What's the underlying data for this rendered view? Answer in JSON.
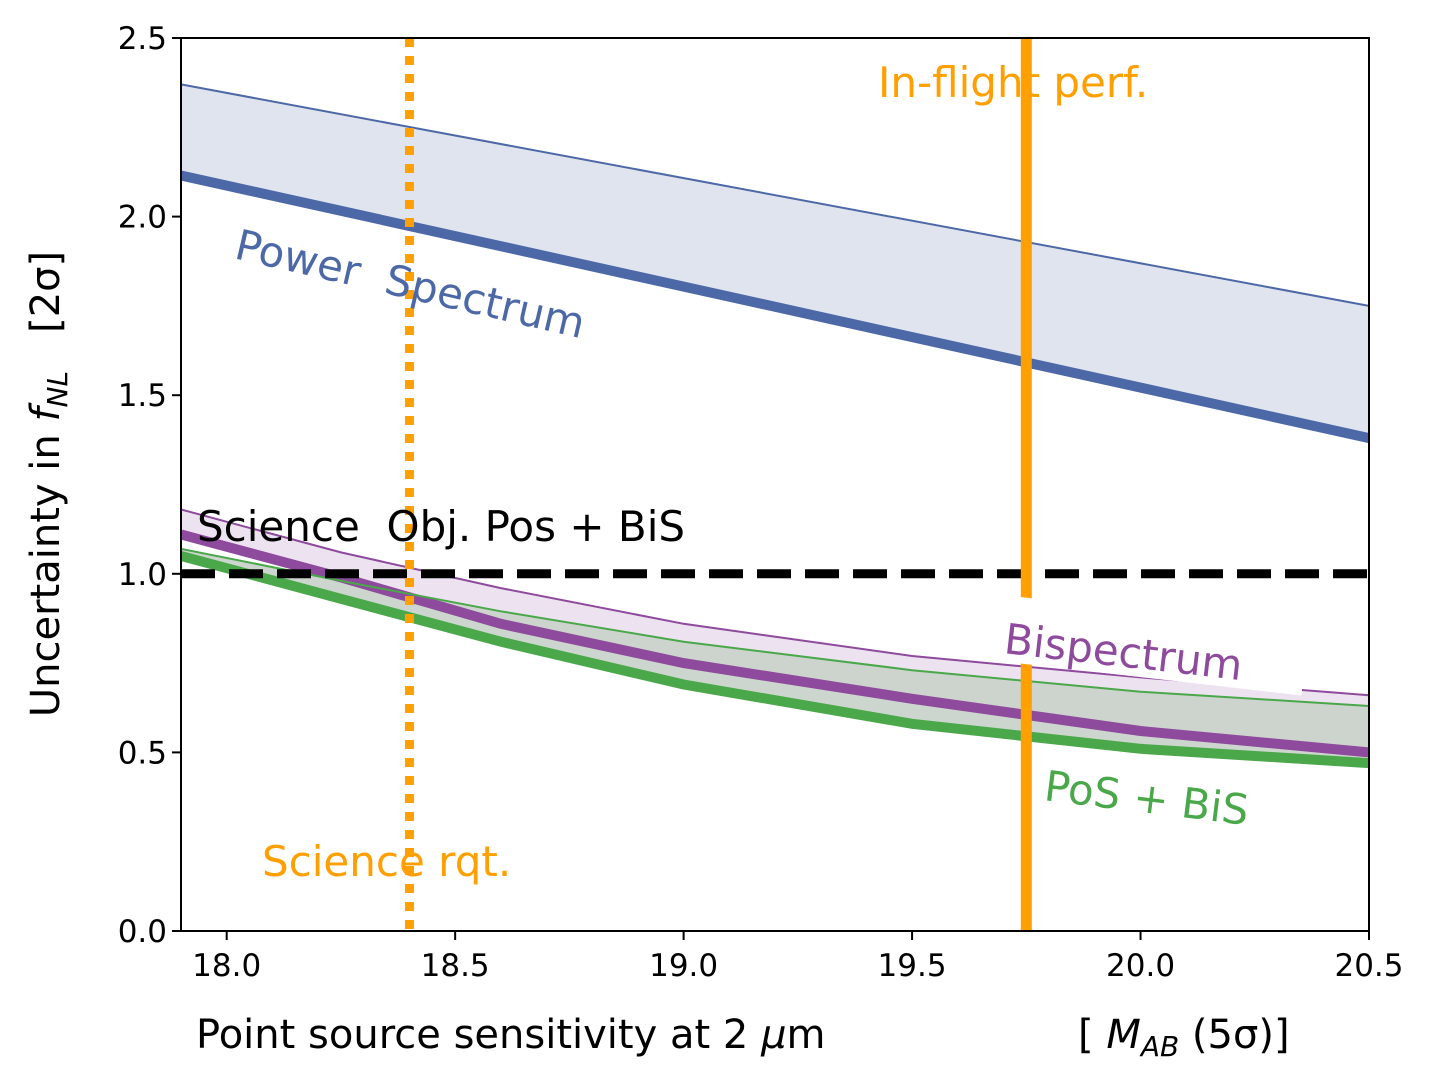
{
  "chart_data": {
    "type": "line",
    "xlabel_main": "Point source sensitivity at 2 ",
    "xlabel_mu": "μ",
    "xlabel_unit_m": "m",
    "xlabel_bracket_open": "[ ",
    "xlabel_M": "M",
    "xlabel_AB": "AB",
    "xlabel_sigma": " (5σ)]",
    "ylabel_main": "Uncertainty in ",
    "ylabel_f": "f",
    "ylabel_NL": "NL",
    "ylabel_bracket": "[2σ]",
    "xlim": [
      17.9,
      20.5
    ],
    "ylim": [
      0.0,
      2.5
    ],
    "xticks": [
      {
        "value": 18.0,
        "label": "18.0"
      },
      {
        "value": 18.5,
        "label": "18.5"
      },
      {
        "value": 19.0,
        "label": "19.0"
      },
      {
        "value": 19.5,
        "label": "19.5"
      },
      {
        "value": 20.0,
        "label": "20.0"
      },
      {
        "value": 20.5,
        "label": "20.5"
      }
    ],
    "yticks": [
      {
        "value": 0.0,
        "label": "0.0"
      },
      {
        "value": 0.5,
        "label": "0.5"
      },
      {
        "value": 1.0,
        "label": "1.0"
      },
      {
        "value": 1.5,
        "label": "1.5"
      },
      {
        "value": 2.0,
        "label": "2.0"
      },
      {
        "value": 2.5,
        "label": "2.5"
      }
    ],
    "bands": [
      {
        "name": "Power Spectrum",
        "color": "#4c68a6",
        "fill": "#dde2ed",
        "upper": {
          "x": [
            17.9,
            20.5
          ],
          "y": [
            2.37,
            1.75
          ]
        },
        "lower": {
          "x": [
            17.9,
            20.5
          ],
          "y": [
            2.115,
            1.38
          ]
        }
      },
      {
        "name": "Bispectrum",
        "color": "#8e4a9c",
        "fill": "#ece0ef",
        "upper": {
          "x": [
            17.9,
            18.25,
            18.6,
            19.0,
            19.5,
            20.0,
            20.5
          ],
          "y": [
            1.18,
            1.06,
            0.96,
            0.86,
            0.77,
            0.71,
            0.66
          ]
        },
        "lower": {
          "x": [
            17.9,
            18.25,
            18.6,
            19.0,
            19.5,
            20.0,
            20.5
          ],
          "y": [
            1.11,
            0.99,
            0.86,
            0.75,
            0.65,
            0.56,
            0.5
          ]
        }
      },
      {
        "name": "PoS + BiS",
        "color": "#4aa84a",
        "fill": "#c9d2ca",
        "upper": {
          "x": [
            17.9,
            18.25,
            18.6,
            19.0,
            19.5,
            20.0,
            20.5
          ],
          "y": [
            1.07,
            0.98,
            0.895,
            0.81,
            0.73,
            0.67,
            0.63
          ]
        },
        "lower": {
          "x": [
            17.9,
            18.25,
            18.6,
            19.0,
            19.5,
            20.0,
            20.5
          ],
          "y": [
            1.05,
            0.93,
            0.81,
            0.69,
            0.58,
            0.51,
            0.47
          ]
        }
      }
    ],
    "hlines": [
      {
        "y": 1.0,
        "color": "#000000",
        "style": "dashed",
        "label": "Science  Obj. Pos + BiS"
      }
    ],
    "vlines": [
      {
        "x": 18.4,
        "color": "#ff9f00",
        "style": "dotted",
        "label": "Science rqt."
      },
      {
        "x": 19.75,
        "color": "#ff9f00",
        "style": "solid",
        "label": "In-flight perf."
      }
    ],
    "annotations": [
      {
        "text": "Power  Spectrum",
        "color": "#4c68a6"
      },
      {
        "text": "Bispectrum",
        "color": "#8e4a9c"
      },
      {
        "text": "PoS + BiS",
        "color": "#4aa84a"
      }
    ]
  }
}
